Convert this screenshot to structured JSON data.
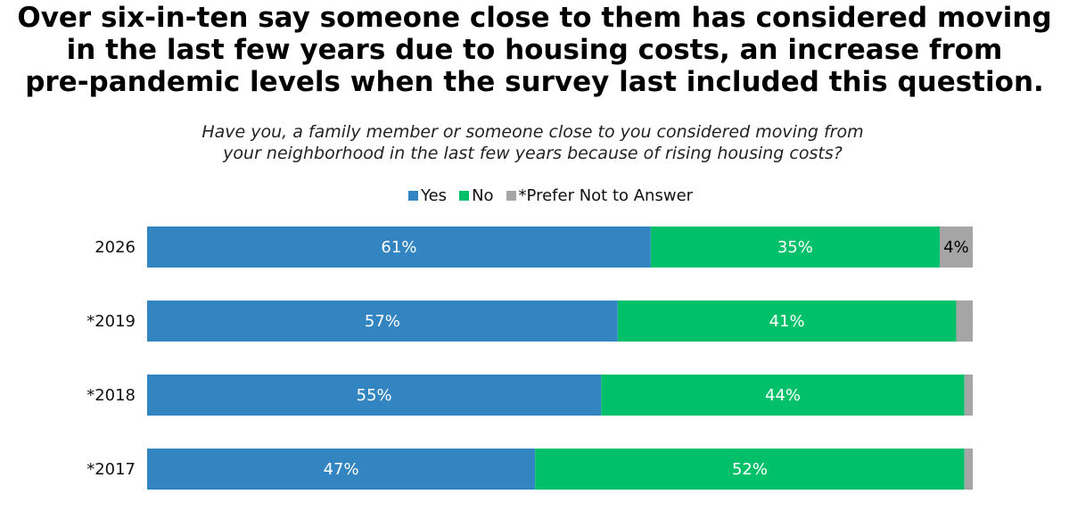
{
  "title_lines": [
    "Over six-in-ten say someone close to them has considered moving",
    "in the last few years due to housing costs, an increase from",
    "pre-pandemic levels when the survey last included this question."
  ],
  "chart_data": {
    "type": "bar",
    "orientation": "horizontal",
    "stacked": true,
    "subtitle_lines": [
      "Have you, a family member or someone close to you considered moving from",
      "your neighborhood in the last few years because of rising housing costs?"
    ],
    "categories": [
      "2026",
      "*2019",
      "*2018",
      "*2017"
    ],
    "series": [
      {
        "name": "Yes",
        "color": "#3385c1",
        "values": [
          61,
          57,
          55,
          47
        ],
        "labels": [
          "61%",
          "57%",
          "55%",
          "47%"
        ],
        "label_color": "#ffffff"
      },
      {
        "name": "No",
        "color": "#00c16a",
        "values": [
          35,
          41,
          44,
          52
        ],
        "labels": [
          "35%",
          "41%",
          "44%",
          "52%"
        ],
        "label_color": "#ffffff"
      },
      {
        "name": "*Prefer Not to Answer",
        "color": "#a5a5a5",
        "values": [
          4,
          2,
          1,
          1
        ],
        "labels": [
          "4%",
          "",
          "",
          ""
        ],
        "label_color": "#000000"
      }
    ],
    "xlim": [
      0,
      100
    ],
    "legend_position": "top",
    "grid": false
  }
}
